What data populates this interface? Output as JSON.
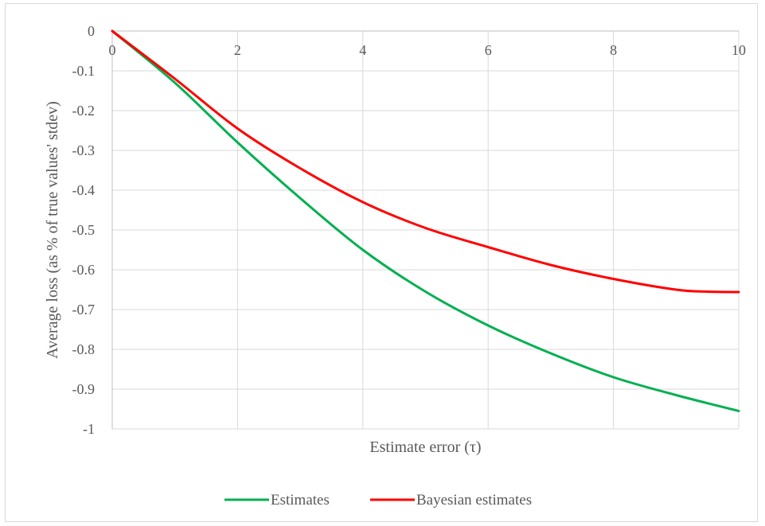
{
  "chart_data": {
    "type": "line",
    "xlabel": "Estimate error (τ)",
    "ylabel": "Average loss (as % of true values' stdev)",
    "xlim": [
      0,
      10
    ],
    "ylim": [
      -1,
      0
    ],
    "x_ticks": [
      "0",
      "2",
      "4",
      "6",
      "8",
      "10"
    ],
    "y_ticks": [
      "0",
      "-0.1",
      "-0.2",
      "-0.3",
      "-0.4",
      "-0.5",
      "-0.6",
      "-0.7",
      "-0.8",
      "-0.9",
      "-1"
    ],
    "grid": "vertical and horizontal",
    "legend_position": "bottom",
    "series": [
      {
        "name": "Estimates",
        "color": "#00b050",
        "x": [
          0,
          1,
          2,
          3,
          4,
          5,
          6,
          7,
          8,
          9,
          10
        ],
        "y": [
          0,
          -0.13,
          -0.28,
          -0.42,
          -0.55,
          -0.655,
          -0.74,
          -0.81,
          -0.87,
          -0.915,
          -0.955
        ]
      },
      {
        "name": "Bayesian estimates",
        "color": "#ff0000",
        "x": [
          0,
          1,
          2,
          3,
          4,
          5,
          6,
          7,
          8,
          9,
          9.5,
          10
        ],
        "y": [
          0,
          -0.12,
          -0.245,
          -0.345,
          -0.43,
          -0.495,
          -0.543,
          -0.588,
          -0.623,
          -0.65,
          -0.655,
          -0.656
        ]
      }
    ]
  }
}
